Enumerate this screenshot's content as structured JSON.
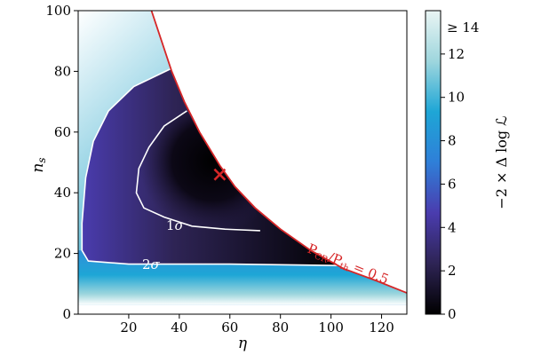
{
  "chart_data": {
    "type": "heatmap",
    "title": "",
    "xlabel": "η",
    "ylabel": "n",
    "ylabel_subscript": "s",
    "xlim": [
      0,
      130
    ],
    "ylim": [
      0,
      100
    ],
    "x_ticks": [
      20,
      40,
      60,
      80,
      100,
      120
    ],
    "y_ticks": [
      0,
      20,
      40,
      60,
      80,
      100
    ],
    "x_tick_labels": [
      "20",
      "40",
      "60",
      "80",
      "100",
      "120"
    ],
    "y_tick_labels": [
      "0",
      "20",
      "40",
      "60",
      "80",
      "100"
    ],
    "colorbar": {
      "label": "−2 × Δ log ℒ",
      "range": [
        0,
        14
      ],
      "ticks": [
        0,
        2,
        4,
        6,
        8,
        10,
        12
      ],
      "tick_labels": [
        "0",
        "2",
        "4",
        "6",
        "8",
        "10",
        "12"
      ],
      "top_label": "≥ 14",
      "colors": [
        "#000000",
        "#2e2455",
        "#4a3cae",
        "#2f7fd8",
        "#1ea6d6",
        "#9ed6dd",
        "#eaf5f4"
      ]
    },
    "best_fit": {
      "eta": 56,
      "ns": 46,
      "marker": "×",
      "color": "#d62728"
    },
    "boundary_curve": {
      "label": "P_CR / P_th = 0.5",
      "label_text": "P",
      "label_sub1": "CR",
      "label_sub2": "th",
      "label_value": " = 0.5",
      "color": "#d62728",
      "points": [
        [
          29,
          100
        ],
        [
          33,
          90
        ],
        [
          37,
          80
        ],
        [
          42,
          70
        ],
        [
          48,
          60
        ],
        [
          56,
          49
        ],
        [
          62,
          42
        ],
        [
          70,
          35
        ],
        [
          80,
          28
        ],
        [
          92,
          21
        ],
        [
          105,
          15
        ],
        [
          118,
          11
        ],
        [
          130,
          7
        ]
      ]
    },
    "contours": [
      {
        "label": "1σ",
        "label_text": "1",
        "points": [
          [
            43,
            67
          ],
          [
            34,
            62
          ],
          [
            28,
            55
          ],
          [
            24,
            48
          ],
          [
            23,
            40
          ],
          [
            26,
            35
          ],
          [
            34,
            32
          ],
          [
            45,
            29
          ],
          [
            58,
            28
          ],
          [
            72,
            27.5
          ]
        ]
      },
      {
        "label": "2σ",
        "label_text": "2",
        "points": [
          [
            37,
            81
          ],
          [
            22,
            75
          ],
          [
            12,
            67
          ],
          [
            6,
            57
          ],
          [
            3,
            45
          ],
          [
            1.5,
            30
          ],
          [
            1.5,
            21
          ],
          [
            4,
            17.5
          ],
          [
            20,
            16.5
          ],
          [
            60,
            16.5
          ],
          [
            105,
            16
          ]
        ]
      }
    ]
  }
}
